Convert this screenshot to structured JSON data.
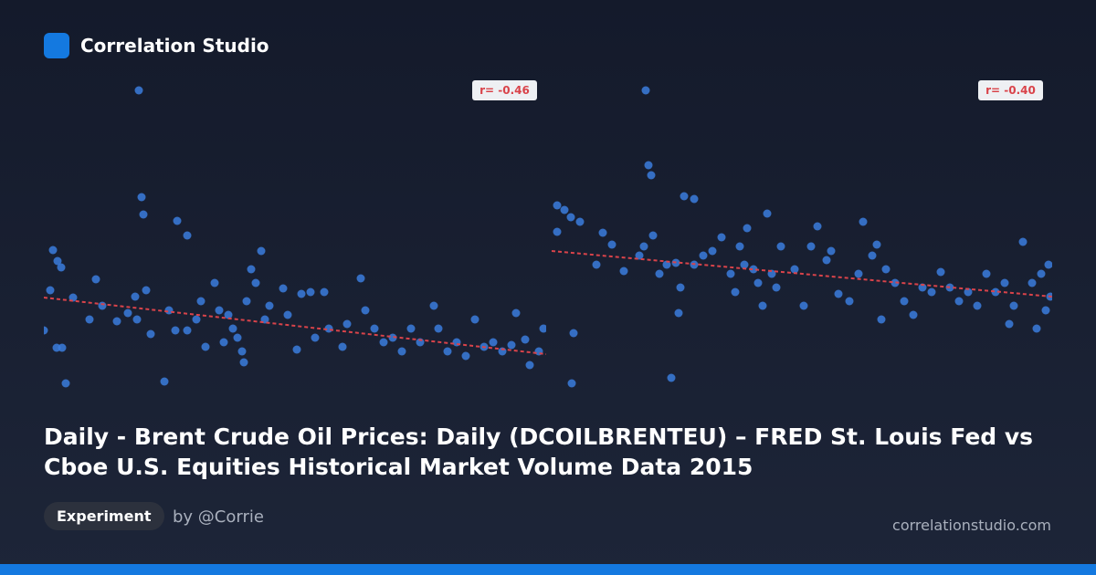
{
  "header": {
    "brand": "Correlation Studio"
  },
  "chart_data": [
    {
      "type": "scatter",
      "annotation": "r= -0.46",
      "color": "#3b7ddd",
      "trend_color": "#d9434a",
      "xlim": [
        0,
        550
      ],
      "ylim": [
        0,
        340
      ],
      "trend": [
        104,
        42
      ],
      "x": [
        104,
        107,
        109,
        146,
        157,
        10,
        15,
        19,
        7,
        0,
        14,
        20,
        24,
        32,
        50,
        57,
        64,
        80,
        92,
        100,
        102,
        112,
        117,
        132,
        137,
        144,
        157,
        167,
        172,
        177,
        187,
        192,
        197,
        202,
        207,
        212,
        217,
        219,
        222,
        227,
        232,
        238,
        242,
        247,
        262,
        267,
        277,
        282,
        292,
        297,
        307,
        312,
        327,
        332,
        347,
        352,
        362,
        372,
        382,
        392,
        402,
        412,
        427,
        432,
        442,
        452,
        462,
        472,
        482,
        492,
        502,
        512,
        517,
        527,
        532,
        542,
        547
      ],
      "y": [
        331,
        214,
        195,
        188,
        172,
        156,
        144,
        137,
        112,
        68,
        49,
        49,
        10,
        104,
        80,
        124,
        95,
        78,
        87,
        105,
        80,
        112,
        64,
        12,
        90,
        68,
        68,
        80,
        100,
        50,
        120,
        90,
        55,
        85,
        70,
        60,
        45,
        33,
        100,
        135,
        120,
        155,
        80,
        95,
        114,
        85,
        47,
        108,
        110,
        60,
        110,
        70,
        50,
        75,
        125,
        90,
        70,
        55,
        60,
        45,
        70,
        55,
        95,
        70,
        45,
        55,
        40,
        80,
        50,
        55,
        45,
        52,
        87,
        58,
        30,
        45,
        70
      ]
    },
    {
      "type": "scatter",
      "annotation": "r= -0.40",
      "color": "#3b7ddd",
      "trend_color": "#d9434a",
      "xlim": [
        0,
        548
      ],
      "ylim": [
        0,
        340
      ],
      "trend": [
        155,
        105
      ],
      "x": [
        103,
        106,
        109,
        145,
        156,
        6,
        14,
        21,
        31,
        6,
        24,
        22,
        131,
        56,
        66,
        49,
        79,
        96,
        101,
        111,
        118,
        126,
        136,
        141,
        139,
        156,
        166,
        176,
        186,
        196,
        201,
        206,
        211,
        214,
        221,
        226,
        231,
        236,
        241,
        246,
        251,
        266,
        276,
        284,
        291,
        301,
        306,
        314,
        326,
        336,
        341,
        351,
        356,
        361,
        366,
        376,
        386,
        396,
        406,
        416,
        426,
        436,
        446,
        456,
        466,
        476,
        486,
        496,
        501,
        506,
        516,
        526,
        531,
        536,
        541,
        544,
        546
      ],
      "y": [
        331,
        249,
        238,
        215,
        212,
        205,
        200,
        192,
        187,
        176,
        65,
        10,
        16,
        175,
        162,
        140,
        133,
        150,
        160,
        172,
        130,
        140,
        142,
        115,
        87,
        140,
        150,
        155,
        170,
        130,
        110,
        160,
        140,
        180,
        135,
        120,
        95,
        196,
        130,
        115,
        160,
        135,
        95,
        160,
        182,
        145,
        155,
        108,
        100,
        130,
        187,
        150,
        162,
        80,
        135,
        120,
        100,
        85,
        115,
        110,
        132,
        115,
        100,
        110,
        95,
        130,
        110,
        120,
        75,
        95,
        165,
        120,
        70,
        130,
        90,
        140,
        105
      ]
    }
  ],
  "title": "Daily - Brent Crude Oil Prices: Daily (DCOILBRENTEU) – FRED St. Louis Fed vs Cboe U.S. Equities Historical Market Volume Data 2015",
  "tag": "Experiment",
  "author": "by @Corrie",
  "site": "correlationstudio.com"
}
